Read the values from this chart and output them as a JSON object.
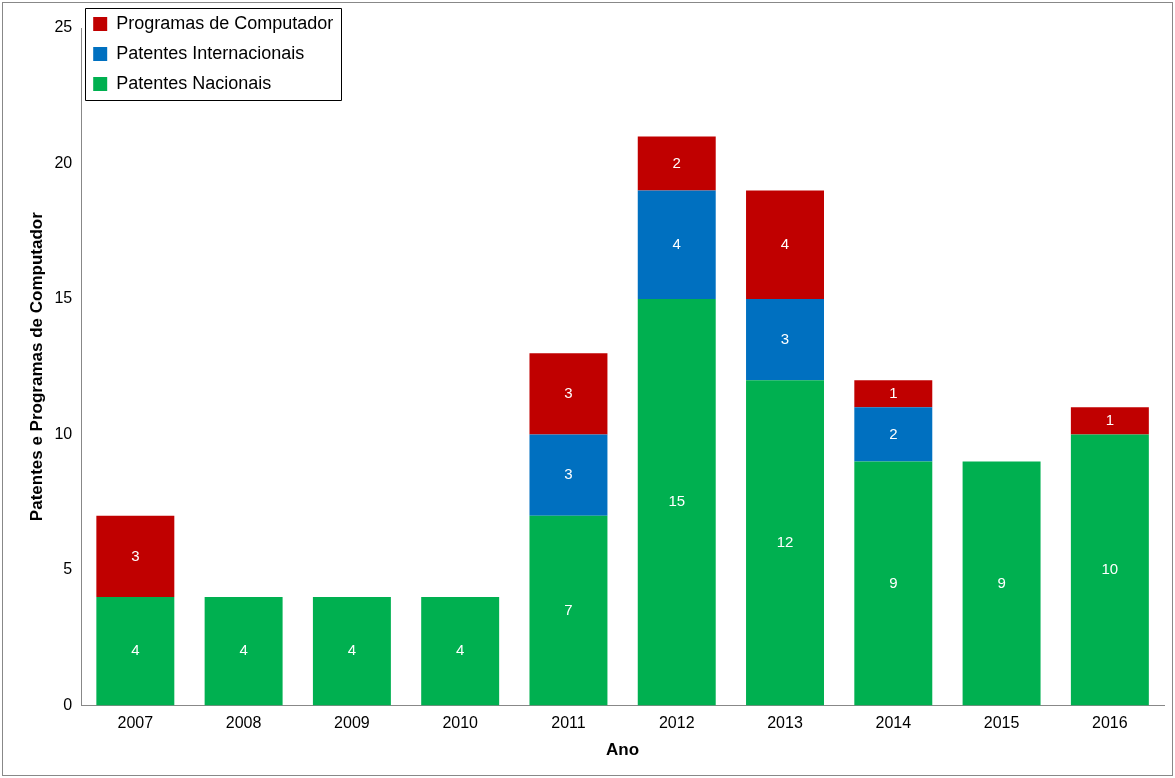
{
  "chart_data": {
    "type": "bar",
    "stacked": true,
    "xlabel": "Ano",
    "ylabel": "Patentes e Programas de Computador",
    "categories": [
      "2007",
      "2008",
      "2009",
      "2010",
      "2011",
      "2012",
      "2013",
      "2014",
      "2015",
      "2016"
    ],
    "series": [
      {
        "name": "Patentes Nacionais",
        "color": "#00b050",
        "values": [
          4,
          4,
          4,
          4,
          7,
          15,
          12,
          9,
          9,
          10
        ]
      },
      {
        "name": "Patentes Internacionais",
        "color": "#0070c0",
        "values": [
          null,
          null,
          null,
          null,
          3,
          4,
          3,
          2,
          null,
          null
        ]
      },
      {
        "name": "Programas de Computador",
        "color": "#c00000",
        "values": [
          3,
          null,
          null,
          null,
          3,
          2,
          4,
          1,
          null,
          1
        ]
      }
    ],
    "ylim": [
      0,
      25
    ],
    "yticks": [
      0,
      5,
      10,
      15,
      20,
      25
    ],
    "grid": false,
    "legend": "top left",
    "data_labels": true
  }
}
